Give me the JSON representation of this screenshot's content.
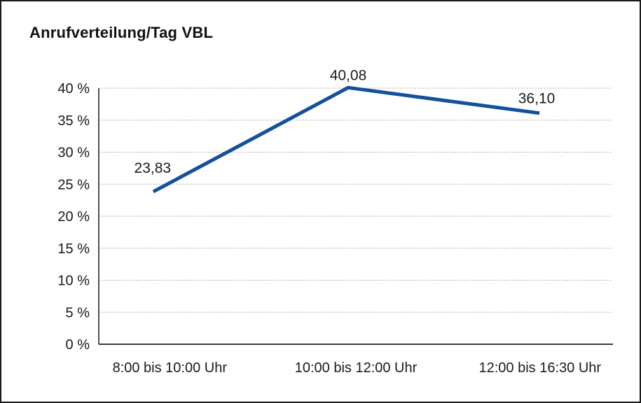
{
  "chart_data": {
    "type": "line",
    "title": "Anrufverteilung/Tag VBL",
    "categories": [
      "8:00 bis 10:00 Uhr",
      "10:00 bis 12:00 Uhr",
      "12:00 bis 16:30 Uhr"
    ],
    "values": [
      23.83,
      40.08,
      36.1
    ],
    "value_labels": [
      "23,83",
      "40,08",
      "36,10"
    ],
    "y_ticks": [
      0,
      5,
      10,
      15,
      20,
      25,
      30,
      35,
      40
    ],
    "y_tick_labels": [
      "0 %",
      "5 %",
      "10 %",
      "15 %",
      "20 %",
      "25 %",
      "30 %",
      "35 %",
      "40 %"
    ],
    "ylim": [
      0,
      40
    ],
    "xlabel": "",
    "ylabel": "",
    "legend": "none",
    "grid": "horizontal-dotted",
    "line_color": "#14509b"
  }
}
